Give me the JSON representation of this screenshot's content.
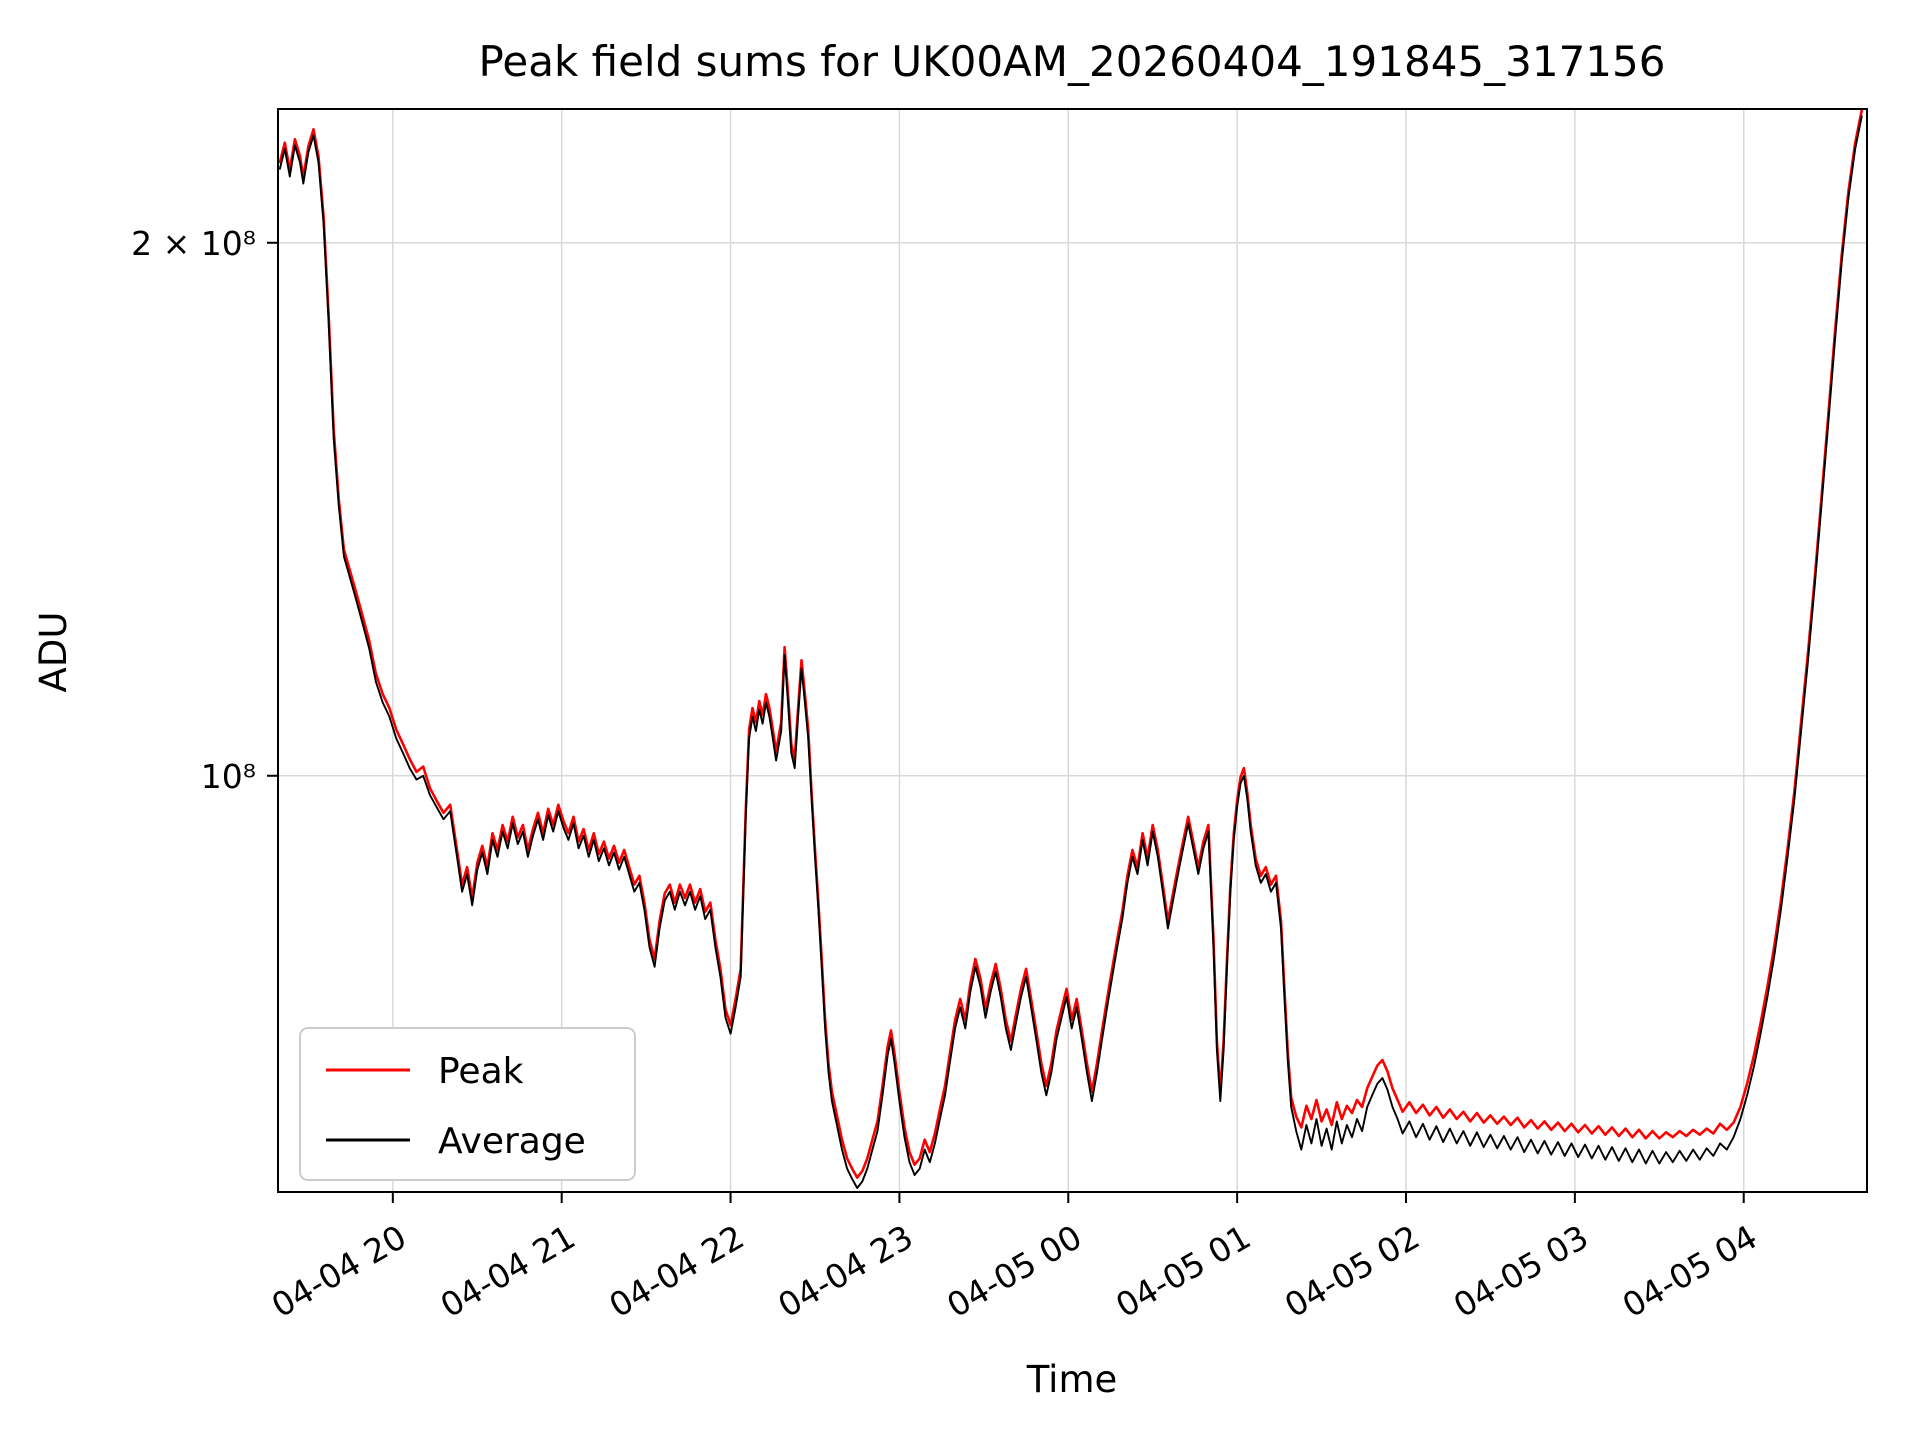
{
  "colors": {
    "background": "#ffffff",
    "grid": "#d9d9d9",
    "spine": "#000000",
    "legend_border": "#cccccc",
    "peak": "#ff0000",
    "average": "#000000"
  },
  "chart_data": {
    "type": "line",
    "title": "Peak field sums for UK00AM_20260404_191845_317156",
    "xlabel": "Time",
    "ylabel": "ADU",
    "yscale": "log",
    "grid": true,
    "legend_position": "lower left",
    "x_unit": "hours since 04-04 00:00",
    "y_unit": "1e8 ADU",
    "xlim": [
      19.32,
      28.73
    ],
    "ylim": [
      0.582,
      2.38
    ],
    "x_ticks": [
      {
        "v": 20,
        "label": "04-04 20"
      },
      {
        "v": 21,
        "label": "04-04 21"
      },
      {
        "v": 22,
        "label": "04-04 22"
      },
      {
        "v": 23,
        "label": "04-04 23"
      },
      {
        "v": 24,
        "label": "04-05 00"
      },
      {
        "v": 25,
        "label": "04-05 01"
      },
      {
        "v": 26,
        "label": "04-05 02"
      },
      {
        "v": 27,
        "label": "04-05 03"
      },
      {
        "v": 28,
        "label": "04-05 04"
      }
    ],
    "y_ticks": [
      {
        "v": 1.0,
        "label": "10⁸"
      },
      {
        "v": 2.0,
        "label": "2 × 10⁸"
      }
    ],
    "series": [
      {
        "name": "Peak",
        "color": "#ff0000",
        "column": 2
      },
      {
        "name": "Average",
        "color": "#000000",
        "column": 1
      }
    ],
    "points_format": "[t_hours, average_1e8ADU, peak_1e8ADU]",
    "points": [
      [
        19.33,
        2.2,
        2.218
      ],
      [
        19.36,
        2.26,
        2.278
      ],
      [
        19.39,
        2.18,
        2.198
      ],
      [
        19.42,
        2.27,
        2.288
      ],
      [
        19.45,
        2.22,
        2.238
      ],
      [
        19.47,
        2.16,
        2.178
      ],
      [
        19.5,
        2.25,
        2.268
      ],
      [
        19.53,
        2.3,
        2.318
      ],
      [
        19.56,
        2.22,
        2.238
      ],
      [
        19.59,
        2.05,
        2.068
      ],
      [
        19.62,
        1.8,
        1.818
      ],
      [
        19.65,
        1.55,
        1.568
      ],
      [
        19.68,
        1.42,
        1.432
      ],
      [
        19.71,
        1.33,
        1.342
      ],
      [
        19.74,
        1.3,
        1.312
      ],
      [
        19.78,
        1.26,
        1.272
      ],
      [
        19.82,
        1.22,
        1.232
      ],
      [
        19.86,
        1.18,
        1.192
      ],
      [
        19.9,
        1.13,
        1.142
      ],
      [
        19.94,
        1.1,
        1.112
      ],
      [
        19.98,
        1.08,
        1.092
      ],
      [
        20.02,
        1.05,
        1.062
      ],
      [
        20.06,
        1.03,
        1.042
      ],
      [
        20.1,
        1.01,
        1.022
      ],
      [
        20.14,
        0.995,
        1.005
      ],
      [
        20.18,
        1.0,
        1.012
      ],
      [
        20.22,
        0.975,
        0.984
      ],
      [
        20.26,
        0.96,
        0.968
      ],
      [
        20.3,
        0.945,
        0.953
      ],
      [
        20.34,
        0.955,
        0.963
      ],
      [
        20.38,
        0.9,
        0.908
      ],
      [
        20.41,
        0.86,
        0.868
      ],
      [
        20.44,
        0.88,
        0.888
      ],
      [
        20.47,
        0.845,
        0.853
      ],
      [
        20.5,
        0.885,
        0.893
      ],
      [
        20.53,
        0.905,
        0.913
      ],
      [
        20.56,
        0.88,
        0.888
      ],
      [
        20.59,
        0.92,
        0.928
      ],
      [
        20.62,
        0.9,
        0.908
      ],
      [
        20.65,
        0.93,
        0.938
      ],
      [
        20.68,
        0.91,
        0.918
      ],
      [
        20.71,
        0.94,
        0.948
      ],
      [
        20.74,
        0.915,
        0.923
      ],
      [
        20.77,
        0.93,
        0.938
      ],
      [
        20.8,
        0.9,
        0.908
      ],
      [
        20.83,
        0.925,
        0.933
      ],
      [
        20.86,
        0.945,
        0.953
      ],
      [
        20.89,
        0.92,
        0.928
      ],
      [
        20.92,
        0.95,
        0.958
      ],
      [
        20.95,
        0.93,
        0.938
      ],
      [
        20.98,
        0.955,
        0.963
      ],
      [
        21.01,
        0.935,
        0.943
      ],
      [
        21.04,
        0.92,
        0.928
      ],
      [
        21.07,
        0.94,
        0.948
      ],
      [
        21.1,
        0.91,
        0.918
      ],
      [
        21.13,
        0.925,
        0.933
      ],
      [
        21.16,
        0.9,
        0.908
      ],
      [
        21.19,
        0.92,
        0.928
      ],
      [
        21.22,
        0.895,
        0.903
      ],
      [
        21.25,
        0.91,
        0.918
      ],
      [
        21.28,
        0.89,
        0.898
      ],
      [
        21.31,
        0.905,
        0.913
      ],
      [
        21.34,
        0.885,
        0.893
      ],
      [
        21.37,
        0.9,
        0.908
      ],
      [
        21.4,
        0.88,
        0.888
      ],
      [
        21.43,
        0.86,
        0.868
      ],
      [
        21.46,
        0.87,
        0.878
      ],
      [
        21.49,
        0.84,
        0.848
      ],
      [
        21.52,
        0.8,
        0.808
      ],
      [
        21.55,
        0.78,
        0.788
      ],
      [
        21.58,
        0.82,
        0.828
      ],
      [
        21.61,
        0.85,
        0.858
      ],
      [
        21.64,
        0.86,
        0.868
      ],
      [
        21.67,
        0.84,
        0.848
      ],
      [
        21.7,
        0.86,
        0.868
      ],
      [
        21.73,
        0.845,
        0.853
      ],
      [
        21.76,
        0.86,
        0.868
      ],
      [
        21.79,
        0.84,
        0.848
      ],
      [
        21.82,
        0.855,
        0.863
      ],
      [
        21.85,
        0.83,
        0.838
      ],
      [
        21.88,
        0.84,
        0.848
      ],
      [
        21.91,
        0.8,
        0.808
      ],
      [
        21.94,
        0.77,
        0.778
      ],
      [
        21.97,
        0.73,
        0.738
      ],
      [
        22.0,
        0.715,
        0.723
      ],
      [
        22.03,
        0.74,
        0.748
      ],
      [
        22.06,
        0.77,
        0.778
      ],
      [
        22.09,
        0.95,
        0.958
      ],
      [
        22.11,
        1.05,
        1.062
      ],
      [
        22.13,
        1.08,
        1.092
      ],
      [
        22.15,
        1.06,
        1.072
      ],
      [
        22.17,
        1.09,
        1.102
      ],
      [
        22.19,
        1.07,
        1.082
      ],
      [
        22.21,
        1.1,
        1.112
      ],
      [
        22.23,
        1.08,
        1.092
      ],
      [
        22.25,
        1.05,
        1.062
      ],
      [
        22.27,
        1.02,
        1.032
      ],
      [
        22.3,
        1.06,
        1.072
      ],
      [
        22.32,
        1.17,
        1.182
      ],
      [
        22.34,
        1.1,
        1.112
      ],
      [
        22.36,
        1.03,
        1.042
      ],
      [
        22.38,
        1.01,
        1.022
      ],
      [
        22.4,
        1.08,
        1.092
      ],
      [
        22.42,
        1.15,
        1.162
      ],
      [
        22.44,
        1.1,
        1.112
      ],
      [
        22.46,
        1.05,
        1.062
      ],
      [
        22.48,
        0.97,
        0.978
      ],
      [
        22.5,
        0.9,
        0.908
      ],
      [
        22.52,
        0.84,
        0.848
      ],
      [
        22.54,
        0.78,
        0.788
      ],
      [
        22.56,
        0.72,
        0.728
      ],
      [
        22.58,
        0.68,
        0.688
      ],
      [
        22.6,
        0.655,
        0.663
      ],
      [
        22.63,
        0.635,
        0.643
      ],
      [
        22.66,
        0.615,
        0.623
      ],
      [
        22.69,
        0.6,
        0.608
      ],
      [
        22.72,
        0.592,
        0.6
      ],
      [
        22.75,
        0.585,
        0.593
      ],
      [
        22.78,
        0.59,
        0.598
      ],
      [
        22.81,
        0.6,
        0.608
      ],
      [
        22.84,
        0.615,
        0.623
      ],
      [
        22.87,
        0.63,
        0.638
      ],
      [
        22.9,
        0.66,
        0.668
      ],
      [
        22.93,
        0.695,
        0.703
      ],
      [
        22.95,
        0.71,
        0.718
      ],
      [
        22.97,
        0.69,
        0.698
      ],
      [
        23.0,
        0.655,
        0.663
      ],
      [
        23.03,
        0.625,
        0.633
      ],
      [
        23.06,
        0.605,
        0.613
      ],
      [
        23.09,
        0.595,
        0.603
      ],
      [
        23.12,
        0.6,
        0.608
      ],
      [
        23.15,
        0.615,
        0.623
      ],
      [
        23.18,
        0.605,
        0.613
      ],
      [
        23.21,
        0.62,
        0.628
      ],
      [
        23.24,
        0.64,
        0.648
      ],
      [
        23.27,
        0.66,
        0.668
      ],
      [
        23.3,
        0.69,
        0.698
      ],
      [
        23.33,
        0.72,
        0.728
      ],
      [
        23.36,
        0.74,
        0.748
      ],
      [
        23.39,
        0.72,
        0.728
      ],
      [
        23.42,
        0.755,
        0.763
      ],
      [
        23.45,
        0.78,
        0.788
      ],
      [
        23.48,
        0.76,
        0.768
      ],
      [
        23.51,
        0.73,
        0.738
      ],
      [
        23.54,
        0.755,
        0.763
      ],
      [
        23.57,
        0.775,
        0.783
      ],
      [
        23.6,
        0.75,
        0.758
      ],
      [
        23.63,
        0.72,
        0.728
      ],
      [
        23.66,
        0.7,
        0.708
      ],
      [
        23.69,
        0.725,
        0.733
      ],
      [
        23.72,
        0.75,
        0.758
      ],
      [
        23.75,
        0.77,
        0.778
      ],
      [
        23.78,
        0.74,
        0.748
      ],
      [
        23.81,
        0.71,
        0.718
      ],
      [
        23.84,
        0.68,
        0.688
      ],
      [
        23.87,
        0.66,
        0.668
      ],
      [
        23.9,
        0.68,
        0.688
      ],
      [
        23.93,
        0.71,
        0.718
      ],
      [
        23.96,
        0.73,
        0.738
      ],
      [
        23.99,
        0.75,
        0.758
      ],
      [
        24.02,
        0.72,
        0.728
      ],
      [
        24.05,
        0.74,
        0.748
      ],
      [
        24.08,
        0.71,
        0.718
      ],
      [
        24.11,
        0.68,
        0.688
      ],
      [
        24.14,
        0.655,
        0.663
      ],
      [
        24.17,
        0.68,
        0.688
      ],
      [
        24.2,
        0.71,
        0.718
      ],
      [
        24.23,
        0.74,
        0.748
      ],
      [
        24.26,
        0.77,
        0.778
      ],
      [
        24.29,
        0.8,
        0.808
      ],
      [
        24.32,
        0.83,
        0.838
      ],
      [
        24.35,
        0.87,
        0.878
      ],
      [
        24.38,
        0.9,
        0.908
      ],
      [
        24.41,
        0.88,
        0.888
      ],
      [
        24.44,
        0.92,
        0.928
      ],
      [
        24.47,
        0.89,
        0.898
      ],
      [
        24.5,
        0.93,
        0.938
      ],
      [
        24.53,
        0.9,
        0.908
      ],
      [
        24.56,
        0.86,
        0.868
      ],
      [
        24.59,
        0.82,
        0.828
      ],
      [
        24.62,
        0.85,
        0.858
      ],
      [
        24.65,
        0.88,
        0.888
      ],
      [
        24.68,
        0.91,
        0.918
      ],
      [
        24.71,
        0.94,
        0.948
      ],
      [
        24.74,
        0.91,
        0.918
      ],
      [
        24.77,
        0.88,
        0.888
      ],
      [
        24.8,
        0.91,
        0.918
      ],
      [
        24.83,
        0.93,
        0.938
      ],
      [
        24.86,
        0.8,
        0.808
      ],
      [
        24.88,
        0.7,
        0.708
      ],
      [
        24.9,
        0.655,
        0.663
      ],
      [
        24.92,
        0.7,
        0.708
      ],
      [
        24.94,
        0.78,
        0.788
      ],
      [
        24.96,
        0.86,
        0.868
      ],
      [
        24.98,
        0.92,
        0.928
      ],
      [
        25.0,
        0.96,
        0.968
      ],
      [
        25.02,
        0.99,
        0.998
      ],
      [
        25.04,
        1.0,
        1.01
      ],
      [
        25.06,
        0.97,
        0.978
      ],
      [
        25.08,
        0.93,
        0.938
      ],
      [
        25.11,
        0.89,
        0.898
      ],
      [
        25.14,
        0.87,
        0.878
      ],
      [
        25.17,
        0.88,
        0.888
      ],
      [
        25.2,
        0.86,
        0.868
      ],
      [
        25.23,
        0.87,
        0.878
      ],
      [
        25.26,
        0.82,
        0.828
      ],
      [
        25.28,
        0.75,
        0.758
      ],
      [
        25.3,
        0.69,
        0.698
      ],
      [
        25.32,
        0.65,
        0.658
      ],
      [
        25.35,
        0.63,
        0.642
      ],
      [
        25.38,
        0.615,
        0.633
      ],
      [
        25.41,
        0.635,
        0.651
      ],
      [
        25.44,
        0.62,
        0.64
      ],
      [
        25.47,
        0.64,
        0.656
      ],
      [
        25.5,
        0.618,
        0.638
      ],
      [
        25.53,
        0.632,
        0.648
      ],
      [
        25.56,
        0.615,
        0.635
      ],
      [
        25.59,
        0.638,
        0.654
      ],
      [
        25.62,
        0.62,
        0.64
      ],
      [
        25.65,
        0.635,
        0.651
      ],
      [
        25.68,
        0.625,
        0.645
      ],
      [
        25.71,
        0.64,
        0.656
      ],
      [
        25.74,
        0.63,
        0.65
      ],
      [
        25.77,
        0.65,
        0.666
      ],
      [
        25.8,
        0.66,
        0.676
      ],
      [
        25.83,
        0.67,
        0.686
      ],
      [
        25.86,
        0.675,
        0.691
      ],
      [
        25.89,
        0.665,
        0.681
      ],
      [
        25.92,
        0.65,
        0.666
      ],
      [
        25.95,
        0.64,
        0.656
      ],
      [
        25.98,
        0.628,
        0.646
      ],
      [
        26.02,
        0.638,
        0.654
      ],
      [
        26.06,
        0.625,
        0.645
      ],
      [
        26.1,
        0.636,
        0.652
      ],
      [
        26.14,
        0.623,
        0.643
      ],
      [
        26.18,
        0.634,
        0.65
      ],
      [
        26.22,
        0.621,
        0.641
      ],
      [
        26.26,
        0.632,
        0.648
      ],
      [
        26.3,
        0.62,
        0.64
      ],
      [
        26.34,
        0.63,
        0.646
      ],
      [
        26.38,
        0.618,
        0.638
      ],
      [
        26.42,
        0.629,
        0.645
      ],
      [
        26.46,
        0.617,
        0.637
      ],
      [
        26.5,
        0.627,
        0.643
      ],
      [
        26.54,
        0.616,
        0.636
      ],
      [
        26.58,
        0.626,
        0.642
      ],
      [
        26.62,
        0.615,
        0.635
      ],
      [
        26.66,
        0.625,
        0.641
      ],
      [
        26.7,
        0.613,
        0.633
      ],
      [
        26.74,
        0.623,
        0.639
      ],
      [
        26.78,
        0.612,
        0.632
      ],
      [
        26.82,
        0.622,
        0.638
      ],
      [
        26.86,
        0.611,
        0.631
      ],
      [
        26.9,
        0.621,
        0.637
      ],
      [
        26.94,
        0.61,
        0.63
      ],
      [
        26.98,
        0.62,
        0.636
      ],
      [
        27.02,
        0.609,
        0.629
      ],
      [
        27.06,
        0.619,
        0.635
      ],
      [
        27.1,
        0.608,
        0.628
      ],
      [
        27.14,
        0.618,
        0.634
      ],
      [
        27.18,
        0.607,
        0.627
      ],
      [
        27.22,
        0.617,
        0.633
      ],
      [
        27.26,
        0.606,
        0.626
      ],
      [
        27.3,
        0.616,
        0.632
      ],
      [
        27.34,
        0.605,
        0.625
      ],
      [
        27.38,
        0.615,
        0.631
      ],
      [
        27.42,
        0.604,
        0.624
      ],
      [
        27.46,
        0.614,
        0.63
      ],
      [
        27.5,
        0.604,
        0.624
      ],
      [
        27.54,
        0.613,
        0.629
      ],
      [
        27.58,
        0.605,
        0.625
      ],
      [
        27.62,
        0.614,
        0.63
      ],
      [
        27.66,
        0.606,
        0.626
      ],
      [
        27.7,
        0.615,
        0.631
      ],
      [
        27.74,
        0.607,
        0.627
      ],
      [
        27.78,
        0.616,
        0.632
      ],
      [
        27.82,
        0.61,
        0.628
      ],
      [
        27.86,
        0.62,
        0.636
      ],
      [
        27.9,
        0.615,
        0.631
      ],
      [
        27.94,
        0.625,
        0.637
      ],
      [
        27.98,
        0.64,
        0.65
      ],
      [
        28.02,
        0.66,
        0.67
      ],
      [
        28.06,
        0.685,
        0.695
      ],
      [
        28.1,
        0.715,
        0.725
      ],
      [
        28.14,
        0.75,
        0.76
      ],
      [
        28.18,
        0.79,
        0.8
      ],
      [
        28.22,
        0.84,
        0.85
      ],
      [
        28.26,
        0.9,
        0.91
      ],
      [
        28.3,
        0.97,
        0.98
      ],
      [
        28.34,
        1.06,
        1.072
      ],
      [
        28.38,
        1.16,
        1.172
      ],
      [
        28.42,
        1.28,
        1.292
      ],
      [
        28.46,
        1.42,
        1.434
      ],
      [
        28.5,
        1.58,
        1.596
      ],
      [
        28.54,
        1.76,
        1.778
      ],
      [
        28.58,
        1.95,
        1.968
      ],
      [
        28.62,
        2.12,
        2.138
      ],
      [
        28.66,
        2.26,
        2.278
      ],
      [
        28.7,
        2.36,
        2.378
      ]
    ]
  },
  "legend": {
    "entries": [
      {
        "label": "Peak"
      },
      {
        "label": "Average"
      }
    ]
  }
}
